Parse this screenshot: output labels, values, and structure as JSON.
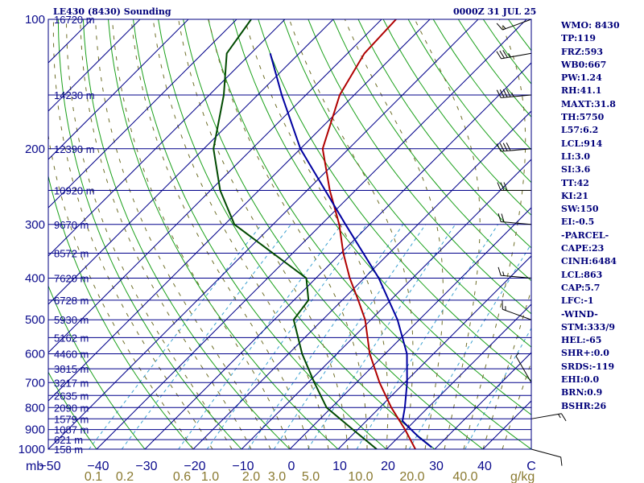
{
  "header": {
    "station": "LE430 (8430) Sounding",
    "time": "0000Z 31 JUL 25"
  },
  "indices": [
    "WMO: 8430",
    "TP:119",
    "FRZ:593",
    "WB0:667",
    "PW:1.24",
    "RH:41.1",
    "MAXT:31.8",
    "TH:5750",
    "L57:6.2",
    "LCL:914",
    "LI:3.0",
    "SI:3.6",
    "TT:42",
    "KI:21",
    "SW:150",
    "EI:-0.5",
    "-PARCEL-",
    "CAPE:23",
    "CINH:6484",
    "LCL:863",
    "CAP:5.7",
    "LFC:-1",
    "-WIND-",
    "STM:333/9",
    "HEL:-65",
    "SHR+:0.0",
    "SRDS:-119",
    "EHI:0.0",
    "BRN:0.9",
    "BSHR:26"
  ],
  "chart_data": {
    "type": "line",
    "diagram": "skew-T log-P",
    "pressure_axis": {
      "unit": "mb",
      "levels": [
        100,
        200,
        300,
        400,
        500,
        600,
        700,
        800,
        900,
        1000
      ],
      "range": [
        100,
        1000
      ],
      "scale": "log"
    },
    "temperature_axis": {
      "unit": "C",
      "ticks": [
        -50,
        -40,
        -30,
        -20,
        -10,
        0,
        10,
        20,
        30,
        40
      ],
      "range": [
        -50,
        50
      ]
    },
    "mixing_ratio_axis": {
      "unit": "g/kg",
      "ticks": [
        "0.1",
        "0.2",
        "0.6",
        "1.0",
        "2.0",
        "3.0",
        "5.0",
        "10.0",
        "20.0",
        "40.0"
      ]
    },
    "height_labels": [
      {
        "p": 100,
        "label": "16720 m"
      },
      {
        "p": 150,
        "label": "14230 m"
      },
      {
        "p": 200,
        "label": "12390 m"
      },
      {
        "p": 250,
        "label": "10920 m"
      },
      {
        "p": 300,
        "label": "9670 m"
      },
      {
        "p": 350,
        "label": "8572 m"
      },
      {
        "p": 400,
        "label": "7620 m"
      },
      {
        "p": 450,
        "label": "6728 m"
      },
      {
        "p": 500,
        "label": "5930 m"
      },
      {
        "p": 550,
        "label": "5162 m"
      },
      {
        "p": 600,
        "label": "4460 m"
      },
      {
        "p": 650,
        "label": "3815 m"
      },
      {
        "p": 700,
        "label": "3217 m"
      },
      {
        "p": 750,
        "label": "2635 m"
      },
      {
        "p": 800,
        "label": "2090 m"
      },
      {
        "p": 850,
        "label": "1579 m"
      },
      {
        "p": 900,
        "label": "1087 m"
      },
      {
        "p": 950,
        "label": "621 m"
      },
      {
        "p": 1000,
        "label": "158 m"
      }
    ],
    "series": [
      {
        "role": "temperature",
        "color": "#b00000",
        "points": [
          {
            "p": 1000,
            "t": 26.0
          },
          {
            "p": 900,
            "t": 19.8
          },
          {
            "p": 800,
            "t": 12.4
          },
          {
            "p": 700,
            "t": 4.8
          },
          {
            "p": 600,
            "t": -3.2
          },
          {
            "p": 500,
            "t": -11.2
          },
          {
            "p": 450,
            "t": -16.7
          },
          {
            "p": 400,
            "t": -23.0
          },
          {
            "p": 350,
            "t": -29.5
          },
          {
            "p": 300,
            "t": -36.3
          },
          {
            "p": 250,
            "t": -45.3
          },
          {
            "p": 200,
            "t": -55.4
          },
          {
            "p": 150,
            "t": -63.0
          },
          {
            "p": 120,
            "t": -66.5
          },
          {
            "p": 100,
            "t": -67.0
          }
        ]
      },
      {
        "role": "dewpoint",
        "color": "#004a00",
        "points": [
          {
            "p": 1000,
            "t": 18.0
          },
          {
            "p": 900,
            "t": 9.0
          },
          {
            "p": 800,
            "t": -1.0
          },
          {
            "p": 700,
            "t": -8.7
          },
          {
            "p": 600,
            "t": -17.2
          },
          {
            "p": 500,
            "t": -26.0
          },
          {
            "p": 450,
            "t": -27.0
          },
          {
            "p": 400,
            "t": -32.0
          },
          {
            "p": 300,
            "t": -58.0
          },
          {
            "p": 250,
            "t": -68.0
          },
          {
            "p": 200,
            "t": -78.0
          },
          {
            "p": 150,
            "t": -87.0
          },
          {
            "p": 120,
            "t": -95.0
          },
          {
            "p": 100,
            "t": -97.0
          }
        ]
      },
      {
        "role": "parcel",
        "color": "#0000a0",
        "points": [
          {
            "p": 990,
            "t": 29.0
          },
          {
            "p": 935,
            "t": 24.0
          },
          {
            "p": 860,
            "t": 17.5
          },
          {
            "p": 800,
            "t": 15.2
          },
          {
            "p": 700,
            "t": 10.5
          },
          {
            "p": 600,
            "t": 4.5
          },
          {
            "p": 500,
            "t": -4.5
          },
          {
            "p": 400,
            "t": -17.0
          },
          {
            "p": 300,
            "t": -35.0
          },
          {
            "p": 200,
            "t": -60.0
          },
          {
            "p": 150,
            "t": -75.0
          },
          {
            "p": 120,
            "t": -86.0
          }
        ]
      }
    ],
    "wind_barbs": [
      {
        "p": 100,
        "dir": 250,
        "kt": 15
      },
      {
        "p": 120,
        "dir": 260,
        "kt": 35
      },
      {
        "p": 150,
        "dir": 265,
        "kt": 45
      },
      {
        "p": 200,
        "dir": 265,
        "kt": 40
      },
      {
        "p": 250,
        "dir": 270,
        "kt": 30
      },
      {
        "p": 300,
        "dir": 275,
        "kt": 20
      },
      {
        "p": 400,
        "dir": 275,
        "kt": 15
      },
      {
        "p": 500,
        "dir": 290,
        "kt": 15
      },
      {
        "p": 700,
        "dir": 330,
        "kt": 5
      },
      {
        "p": 850,
        "dir": 80,
        "kt": 15
      },
      {
        "p": 1000,
        "dir": 105,
        "kt": 10
      }
    ]
  }
}
